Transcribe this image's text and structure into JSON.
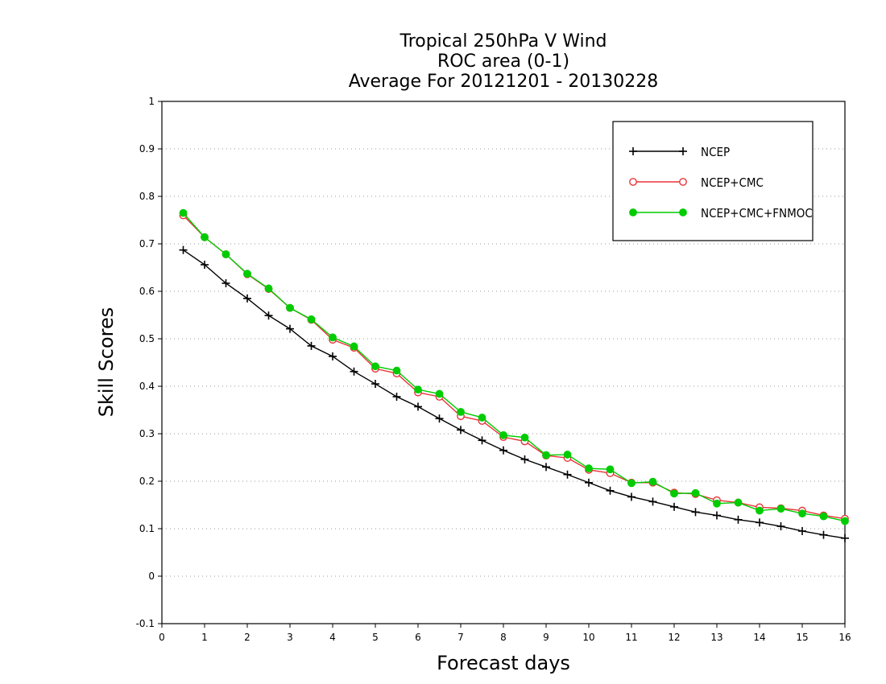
{
  "chart_data": {
    "type": "line",
    "title_lines": [
      "Tropical 250hPa V Wind",
      "ROC area (0-1)",
      "Average For 20121201 - 20130228"
    ],
    "xlabel": "Forecast days",
    "ylabel": "Skill Scores",
    "xlim": [
      0,
      16
    ],
    "ylim": [
      -0.1,
      1
    ],
    "x_ticks": [
      "0",
      "1",
      "2",
      "3",
      "4",
      "5",
      "6",
      "7",
      "8",
      "9",
      "10",
      "11",
      "12",
      "13",
      "14",
      "15",
      "16"
    ],
    "y_ticks": [
      "-0.1",
      "0",
      "0.1",
      "0.2",
      "0.3",
      "0.4",
      "0.5",
      "0.6",
      "0.7",
      "0.8",
      "0.9",
      "1"
    ],
    "grid": "horizontal dotted",
    "legend_position": "top-right",
    "x": [
      0.5,
      1,
      1.5,
      2,
      2.5,
      3,
      3.5,
      4,
      4.5,
      5,
      5.5,
      6,
      6.5,
      7,
      7.5,
      8,
      8.5,
      9,
      9.5,
      10,
      10.5,
      11,
      11.5,
      12,
      12.5,
      13,
      13.5,
      14,
      14.5,
      15,
      15.5,
      16
    ],
    "series": [
      {
        "name": "NCEP",
        "color": "#000000",
        "marker": "plus",
        "values": [
          0.687,
          0.656,
          0.617,
          0.585,
          0.549,
          0.521,
          0.485,
          0.463,
          0.431,
          0.405,
          0.378,
          0.357,
          0.332,
          0.308,
          0.286,
          0.265,
          0.246,
          0.23,
          0.214,
          0.197,
          0.18,
          0.167,
          0.157,
          0.146,
          0.135,
          0.128,
          0.119,
          0.113,
          0.105,
          0.095,
          0.087,
          0.08
        ]
      },
      {
        "name": "NCEP+CMC",
        "color": "#e8343a",
        "marker": "open-circle",
        "values": [
          0.76,
          0.714,
          0.678,
          0.636,
          0.605,
          0.565,
          0.54,
          0.498,
          0.481,
          0.437,
          0.427,
          0.387,
          0.378,
          0.337,
          0.327,
          0.293,
          0.284,
          0.254,
          0.249,
          0.224,
          0.217,
          0.197,
          0.197,
          0.176,
          0.173,
          0.16,
          0.155,
          0.145,
          0.143,
          0.138,
          0.128,
          0.121
        ]
      },
      {
        "name": "NCEP+CMC+FNMOC",
        "color": "#00cc00",
        "marker": "filled-circle",
        "values": [
          0.765,
          0.714,
          0.678,
          0.637,
          0.606,
          0.565,
          0.541,
          0.503,
          0.484,
          0.442,
          0.433,
          0.393,
          0.384,
          0.346,
          0.334,
          0.297,
          0.292,
          0.255,
          0.256,
          0.227,
          0.225,
          0.196,
          0.199,
          0.174,
          0.175,
          0.153,
          0.155,
          0.138,
          0.142,
          0.132,
          0.126,
          0.116
        ]
      }
    ]
  }
}
